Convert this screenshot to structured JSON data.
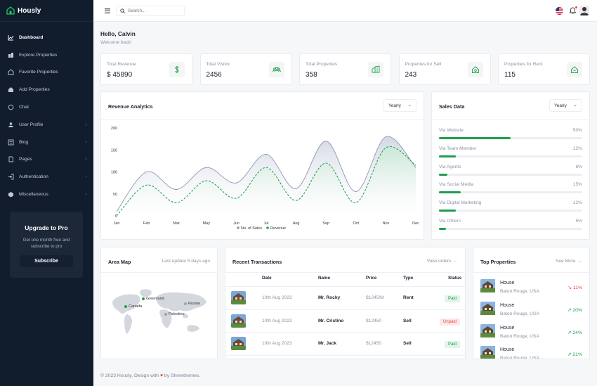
{
  "brand": {
    "name": "Hously"
  },
  "sidebar": {
    "items": [
      {
        "label": "Dashboard",
        "icon": "chart-line-icon",
        "active": true,
        "chevron": false
      },
      {
        "label": "Explore Properties",
        "icon": "buildings-icon",
        "active": false,
        "chevron": false
      },
      {
        "label": "Favorite Properties",
        "icon": "home-heart-icon",
        "active": false,
        "chevron": false
      },
      {
        "label": "Add Properties",
        "icon": "home-add-icon",
        "active": false,
        "chevron": false
      },
      {
        "label": "Chat",
        "icon": "chat-icon",
        "active": false,
        "chevron": false
      },
      {
        "label": "User Profile",
        "icon": "user-icon",
        "active": false,
        "chevron": true
      },
      {
        "label": "Blog",
        "icon": "blog-icon",
        "active": false,
        "chevron": true
      },
      {
        "label": "Pages",
        "icon": "file-icon",
        "active": false,
        "chevron": true
      },
      {
        "label": "Authentication",
        "icon": "login-icon",
        "active": false,
        "chevron": true
      },
      {
        "label": "Miscellaneous",
        "icon": "cube-icon",
        "active": false,
        "chevron": true
      }
    ]
  },
  "upgrade": {
    "title": "Upgrade to Pro",
    "line1": "Get one month free and",
    "line2": "subscribe to pro",
    "button": "Subscribe"
  },
  "topbar": {
    "search_placeholder": "Search..."
  },
  "greeting": {
    "title": "Hello, Calvin",
    "subtitle": "Welcome back!"
  },
  "stats": [
    {
      "label": "Total Revenue",
      "value": "$ 45890",
      "icon": "dollar-icon"
    },
    {
      "label": "Total Visitor",
      "value": "2456",
      "icon": "users-icon"
    },
    {
      "label": "Total Properties",
      "value": "358",
      "icon": "building-icon"
    },
    {
      "label": "Properties for Sell",
      "value": "243",
      "icon": "home-sell-icon"
    },
    {
      "label": "Properties for Rent",
      "value": "115",
      "icon": "home-rent-icon"
    }
  ],
  "revenue": {
    "title": "Revenue Analytics",
    "select": "Yearly"
  },
  "chart_data": {
    "type": "area",
    "categories": [
      "Jan",
      "Feb",
      "Mar",
      "May",
      "Jun",
      "Jul",
      "Aug",
      "Sep",
      "Oct",
      "Nov",
      "Dec"
    ],
    "yticks": [
      "200",
      "150",
      "100",
      "50",
      "0"
    ],
    "ylim": [
      0,
      200
    ],
    "legend_position": "bottom",
    "grid": false,
    "series": [
      {
        "name": "No. of Sales",
        "color": "#8e96b4",
        "style": "solid",
        "values": [
          10,
          100,
          60,
          110,
          75,
          140,
          62,
          170,
          55,
          180,
          110
        ]
      },
      {
        "name": "Revenue",
        "color": "#22a352",
        "style": "dashed",
        "values": [
          0,
          70,
          30,
          80,
          40,
          110,
          35,
          120,
          30,
          155,
          115
        ]
      }
    ]
  },
  "sales": {
    "title": "Sales Data",
    "select": "Yearly",
    "rows": [
      {
        "name": "Via Website",
        "pct": "50%",
        "value": 50
      },
      {
        "name": "Via Team Member",
        "pct": "12%",
        "value": 12
      },
      {
        "name": "Via Agents",
        "pct": "6%",
        "value": 6
      },
      {
        "name": "Via Social Media",
        "pct": "15%",
        "value": 15
      },
      {
        "name": "Via Digital Marketing",
        "pct": "12%",
        "value": 12
      },
      {
        "name": "Via Others",
        "pct": "5%",
        "value": 5
      }
    ]
  },
  "map": {
    "title": "Area Map",
    "update": "Last update 5 days ago",
    "labels": [
      "Greenland",
      "Canada",
      "Russia",
      "Palestine"
    ]
  },
  "transactions": {
    "title": "Recent Transactions",
    "link": "View orders",
    "headers": [
      "Date",
      "Name",
      "Price",
      "Type",
      "Status"
    ],
    "rows": [
      {
        "date": "10th Aug 2023",
        "name": "Mr. Rocky",
        "price": "$1245/M",
        "type": "Rent",
        "status": "Paid"
      },
      {
        "date": "10th Aug 2023",
        "name": "Mr. Cristino",
        "price": "$12450",
        "type": "Sell",
        "status": "Unpaid"
      },
      {
        "date": "10th Aug 2023",
        "name": "Mr. Jack",
        "price": "$12450",
        "type": "Sell",
        "status": "Paid"
      }
    ]
  },
  "top": {
    "title": "Top Properties",
    "link": "See More",
    "rows": [
      {
        "type": "House",
        "loc": "Baton Rouge, USA",
        "change": "11%",
        "dir": "down"
      },
      {
        "type": "House",
        "loc": "Baton Rouge, USA",
        "change": "20%",
        "dir": "up"
      },
      {
        "type": "House",
        "loc": "Baton Rouge, USA",
        "change": "24%",
        "dir": "up"
      },
      {
        "type": "House",
        "loc": "Baton Rouge, USA",
        "change": "21%",
        "dir": "up"
      }
    ]
  },
  "footer": {
    "pre": "© 2023 Hously. Design with",
    "post": "by Shreethemes."
  },
  "colors": {
    "accent": "#1e9e4f",
    "sidebar": "#111c2d",
    "down": "#e44444",
    "up": "#1e9e4f"
  }
}
